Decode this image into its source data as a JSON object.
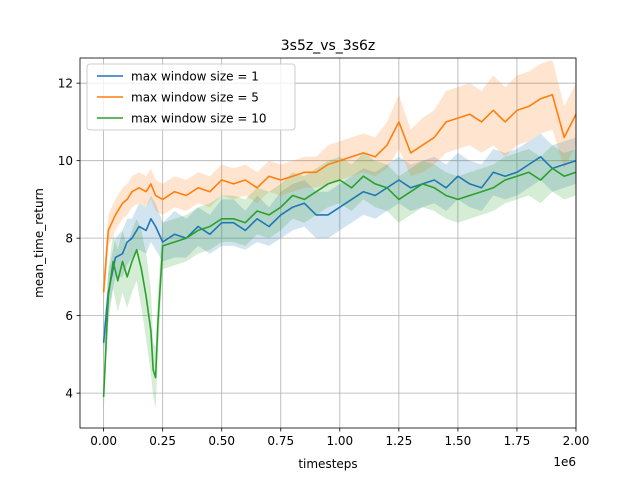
{
  "chart_data": {
    "type": "line",
    "title": "3s5z_vs_3s6z",
    "xlabel": "timesteps",
    "ylabel": "mean_time_return",
    "x_scale_label": "1e6",
    "xlim": [
      -0.1,
      2.0
    ],
    "ylim": [
      3.1,
      12.65
    ],
    "x_ticks": [
      0.0,
      0.25,
      0.5,
      0.75,
      1.0,
      1.25,
      1.5,
      1.75,
      2.0
    ],
    "x_tick_labels": [
      "0.00",
      "0.25",
      "0.50",
      "0.75",
      "1.00",
      "1.25",
      "1.50",
      "1.75",
      "2.00"
    ],
    "y_ticks": [
      4,
      6,
      8,
      10,
      12
    ],
    "y_tick_labels": [
      "4",
      "6",
      "8",
      "10",
      "12"
    ],
    "grid": true,
    "legend_position": "top-left",
    "series": [
      {
        "name": "max window size = 1",
        "color": "#1f77b4",
        "x": [
          0.0,
          0.02,
          0.05,
          0.08,
          0.1,
          0.12,
          0.15,
          0.18,
          0.2,
          0.22,
          0.25,
          0.3,
          0.35,
          0.4,
          0.45,
          0.5,
          0.55,
          0.6,
          0.65,
          0.7,
          0.75,
          0.8,
          0.85,
          0.9,
          0.95,
          1.0,
          1.05,
          1.1,
          1.15,
          1.2,
          1.25,
          1.3,
          1.35,
          1.4,
          1.45,
          1.5,
          1.55,
          1.6,
          1.65,
          1.7,
          1.75,
          1.8,
          1.85,
          1.9,
          1.95,
          2.0
        ],
        "y": [
          5.3,
          6.6,
          7.5,
          7.6,
          7.9,
          8.0,
          8.3,
          8.2,
          8.5,
          8.3,
          7.9,
          8.1,
          8.0,
          8.3,
          8.1,
          8.4,
          8.4,
          8.2,
          8.5,
          8.3,
          8.6,
          8.8,
          8.9,
          8.6,
          8.6,
          8.8,
          9.0,
          9.2,
          9.1,
          9.3,
          9.5,
          9.3,
          9.4,
          9.5,
          9.3,
          9.6,
          9.4,
          9.3,
          9.7,
          9.6,
          9.7,
          9.9,
          10.1,
          9.8,
          9.9,
          10.0
        ],
        "lower": [
          4.9,
          6.1,
          7.0,
          7.0,
          7.3,
          7.5,
          7.7,
          7.6,
          7.9,
          7.7,
          7.4,
          7.5,
          7.5,
          7.8,
          7.6,
          7.8,
          7.8,
          7.7,
          7.9,
          7.8,
          8.0,
          8.2,
          8.3,
          8.0,
          8.0,
          8.2,
          8.4,
          8.6,
          8.5,
          8.7,
          8.9,
          8.7,
          8.8,
          8.9,
          8.7,
          9.0,
          8.8,
          8.7,
          9.1,
          9.0,
          9.1,
          9.3,
          9.5,
          9.2,
          9.3,
          9.4
        ],
        "upper": [
          5.7,
          7.1,
          8.0,
          8.2,
          8.5,
          8.5,
          8.9,
          8.8,
          9.1,
          8.9,
          8.4,
          8.7,
          8.5,
          8.8,
          8.6,
          9.0,
          9.0,
          8.7,
          9.1,
          8.8,
          9.2,
          9.4,
          9.5,
          9.2,
          9.2,
          9.4,
          9.6,
          9.8,
          9.7,
          9.9,
          10.1,
          9.9,
          10.0,
          10.1,
          9.9,
          10.2,
          10.0,
          9.9,
          10.3,
          10.2,
          10.3,
          10.5,
          10.7,
          10.4,
          10.5,
          10.6
        ]
      },
      {
        "name": "max window size = 5",
        "color": "#ff7f0e",
        "x": [
          0.0,
          0.02,
          0.05,
          0.08,
          0.1,
          0.12,
          0.15,
          0.18,
          0.2,
          0.22,
          0.25,
          0.3,
          0.35,
          0.4,
          0.45,
          0.5,
          0.55,
          0.6,
          0.65,
          0.7,
          0.75,
          0.8,
          0.85,
          0.9,
          0.95,
          1.0,
          1.05,
          1.1,
          1.15,
          1.2,
          1.25,
          1.3,
          1.35,
          1.4,
          1.45,
          1.5,
          1.55,
          1.6,
          1.65,
          1.7,
          1.75,
          1.8,
          1.85,
          1.9,
          1.95,
          2.0
        ],
        "y": [
          6.6,
          8.2,
          8.6,
          8.9,
          9.0,
          9.2,
          9.3,
          9.2,
          9.4,
          9.1,
          9.0,
          9.2,
          9.1,
          9.3,
          9.2,
          9.5,
          9.4,
          9.5,
          9.3,
          9.6,
          9.5,
          9.6,
          9.7,
          9.7,
          9.9,
          10.0,
          10.1,
          10.2,
          10.1,
          10.4,
          11.0,
          10.2,
          10.4,
          10.6,
          11.0,
          11.1,
          11.2,
          11.0,
          11.3,
          11.0,
          11.3,
          11.4,
          11.6,
          11.7,
          10.6,
          11.2
        ],
        "lower": [
          6.2,
          7.8,
          8.2,
          8.5,
          8.6,
          8.8,
          8.9,
          8.8,
          9.0,
          8.7,
          8.6,
          8.8,
          8.7,
          8.9,
          8.8,
          9.1,
          9.0,
          9.1,
          8.9,
          9.2,
          9.1,
          9.2,
          9.3,
          9.3,
          9.4,
          9.5,
          9.6,
          9.7,
          9.6,
          9.8,
          10.3,
          9.6,
          9.7,
          9.9,
          10.2,
          10.3,
          10.4,
          10.2,
          10.4,
          10.1,
          10.4,
          10.5,
          10.7,
          10.8,
          9.8,
          10.4
        ],
        "upper": [
          7.0,
          8.6,
          9.0,
          9.3,
          9.4,
          9.6,
          9.7,
          9.6,
          9.8,
          9.5,
          9.4,
          9.6,
          9.5,
          9.7,
          9.6,
          9.9,
          9.8,
          9.9,
          9.7,
          10.0,
          9.9,
          10.0,
          10.1,
          10.1,
          10.4,
          10.5,
          10.6,
          10.7,
          10.6,
          11.0,
          11.7,
          10.8,
          11.1,
          11.3,
          11.8,
          11.9,
          12.0,
          11.8,
          12.2,
          11.9,
          12.2,
          12.3,
          12.5,
          12.6,
          11.4,
          12.0
        ]
      },
      {
        "name": "max window size = 10",
        "color": "#2ca02c",
        "x": [
          0.0,
          0.02,
          0.04,
          0.06,
          0.08,
          0.1,
          0.12,
          0.14,
          0.16,
          0.18,
          0.2,
          0.21,
          0.22,
          0.23,
          0.25,
          0.3,
          0.35,
          0.4,
          0.45,
          0.5,
          0.55,
          0.6,
          0.65,
          0.7,
          0.75,
          0.8,
          0.85,
          0.9,
          0.95,
          1.0,
          1.05,
          1.1,
          1.15,
          1.2,
          1.25,
          1.3,
          1.35,
          1.4,
          1.45,
          1.5,
          1.55,
          1.6,
          1.65,
          1.7,
          1.75,
          1.8,
          1.85,
          1.9,
          1.95,
          2.0
        ],
        "y": [
          3.9,
          6.5,
          7.4,
          6.9,
          7.4,
          7.0,
          7.4,
          7.7,
          7.2,
          6.5,
          5.6,
          4.6,
          4.4,
          5.8,
          7.8,
          7.9,
          8.0,
          8.2,
          8.3,
          8.5,
          8.5,
          8.4,
          8.7,
          8.6,
          8.8,
          9.1,
          9.0,
          9.2,
          9.4,
          9.5,
          9.3,
          9.6,
          9.4,
          9.3,
          9.0,
          9.2,
          9.4,
          9.3,
          9.1,
          9.0,
          9.1,
          9.2,
          9.3,
          9.5,
          9.6,
          9.7,
          9.5,
          9.8,
          9.6,
          9.7
        ],
        "lower": [
          3.5,
          5.8,
          6.7,
          6.1,
          6.6,
          6.2,
          6.6,
          6.9,
          6.2,
          5.4,
          4.5,
          3.9,
          3.6,
          5.0,
          7.2,
          7.3,
          7.4,
          7.6,
          7.7,
          7.9,
          7.9,
          7.8,
          8.1,
          8.0,
          8.2,
          8.5,
          8.4,
          8.6,
          8.8,
          8.9,
          8.7,
          9.0,
          8.8,
          8.7,
          8.4,
          8.6,
          8.8,
          8.7,
          8.5,
          8.4,
          8.5,
          8.6,
          8.7,
          8.9,
          9.0,
          9.1,
          8.9,
          9.2,
          9.0,
          9.1
        ],
        "upper": [
          4.3,
          7.2,
          8.1,
          7.7,
          8.2,
          7.8,
          8.2,
          8.5,
          8.2,
          7.6,
          6.7,
          5.3,
          5.2,
          6.6,
          8.4,
          8.5,
          8.6,
          8.8,
          8.9,
          9.1,
          9.1,
          9.0,
          9.3,
          9.2,
          9.4,
          9.7,
          9.6,
          9.8,
          10.0,
          10.1,
          9.9,
          10.2,
          10.0,
          9.9,
          9.6,
          9.8,
          10.0,
          9.9,
          9.7,
          9.6,
          9.7,
          9.8,
          9.9,
          10.1,
          10.2,
          10.3,
          10.1,
          10.4,
          10.2,
          10.3
        ]
      }
    ]
  }
}
